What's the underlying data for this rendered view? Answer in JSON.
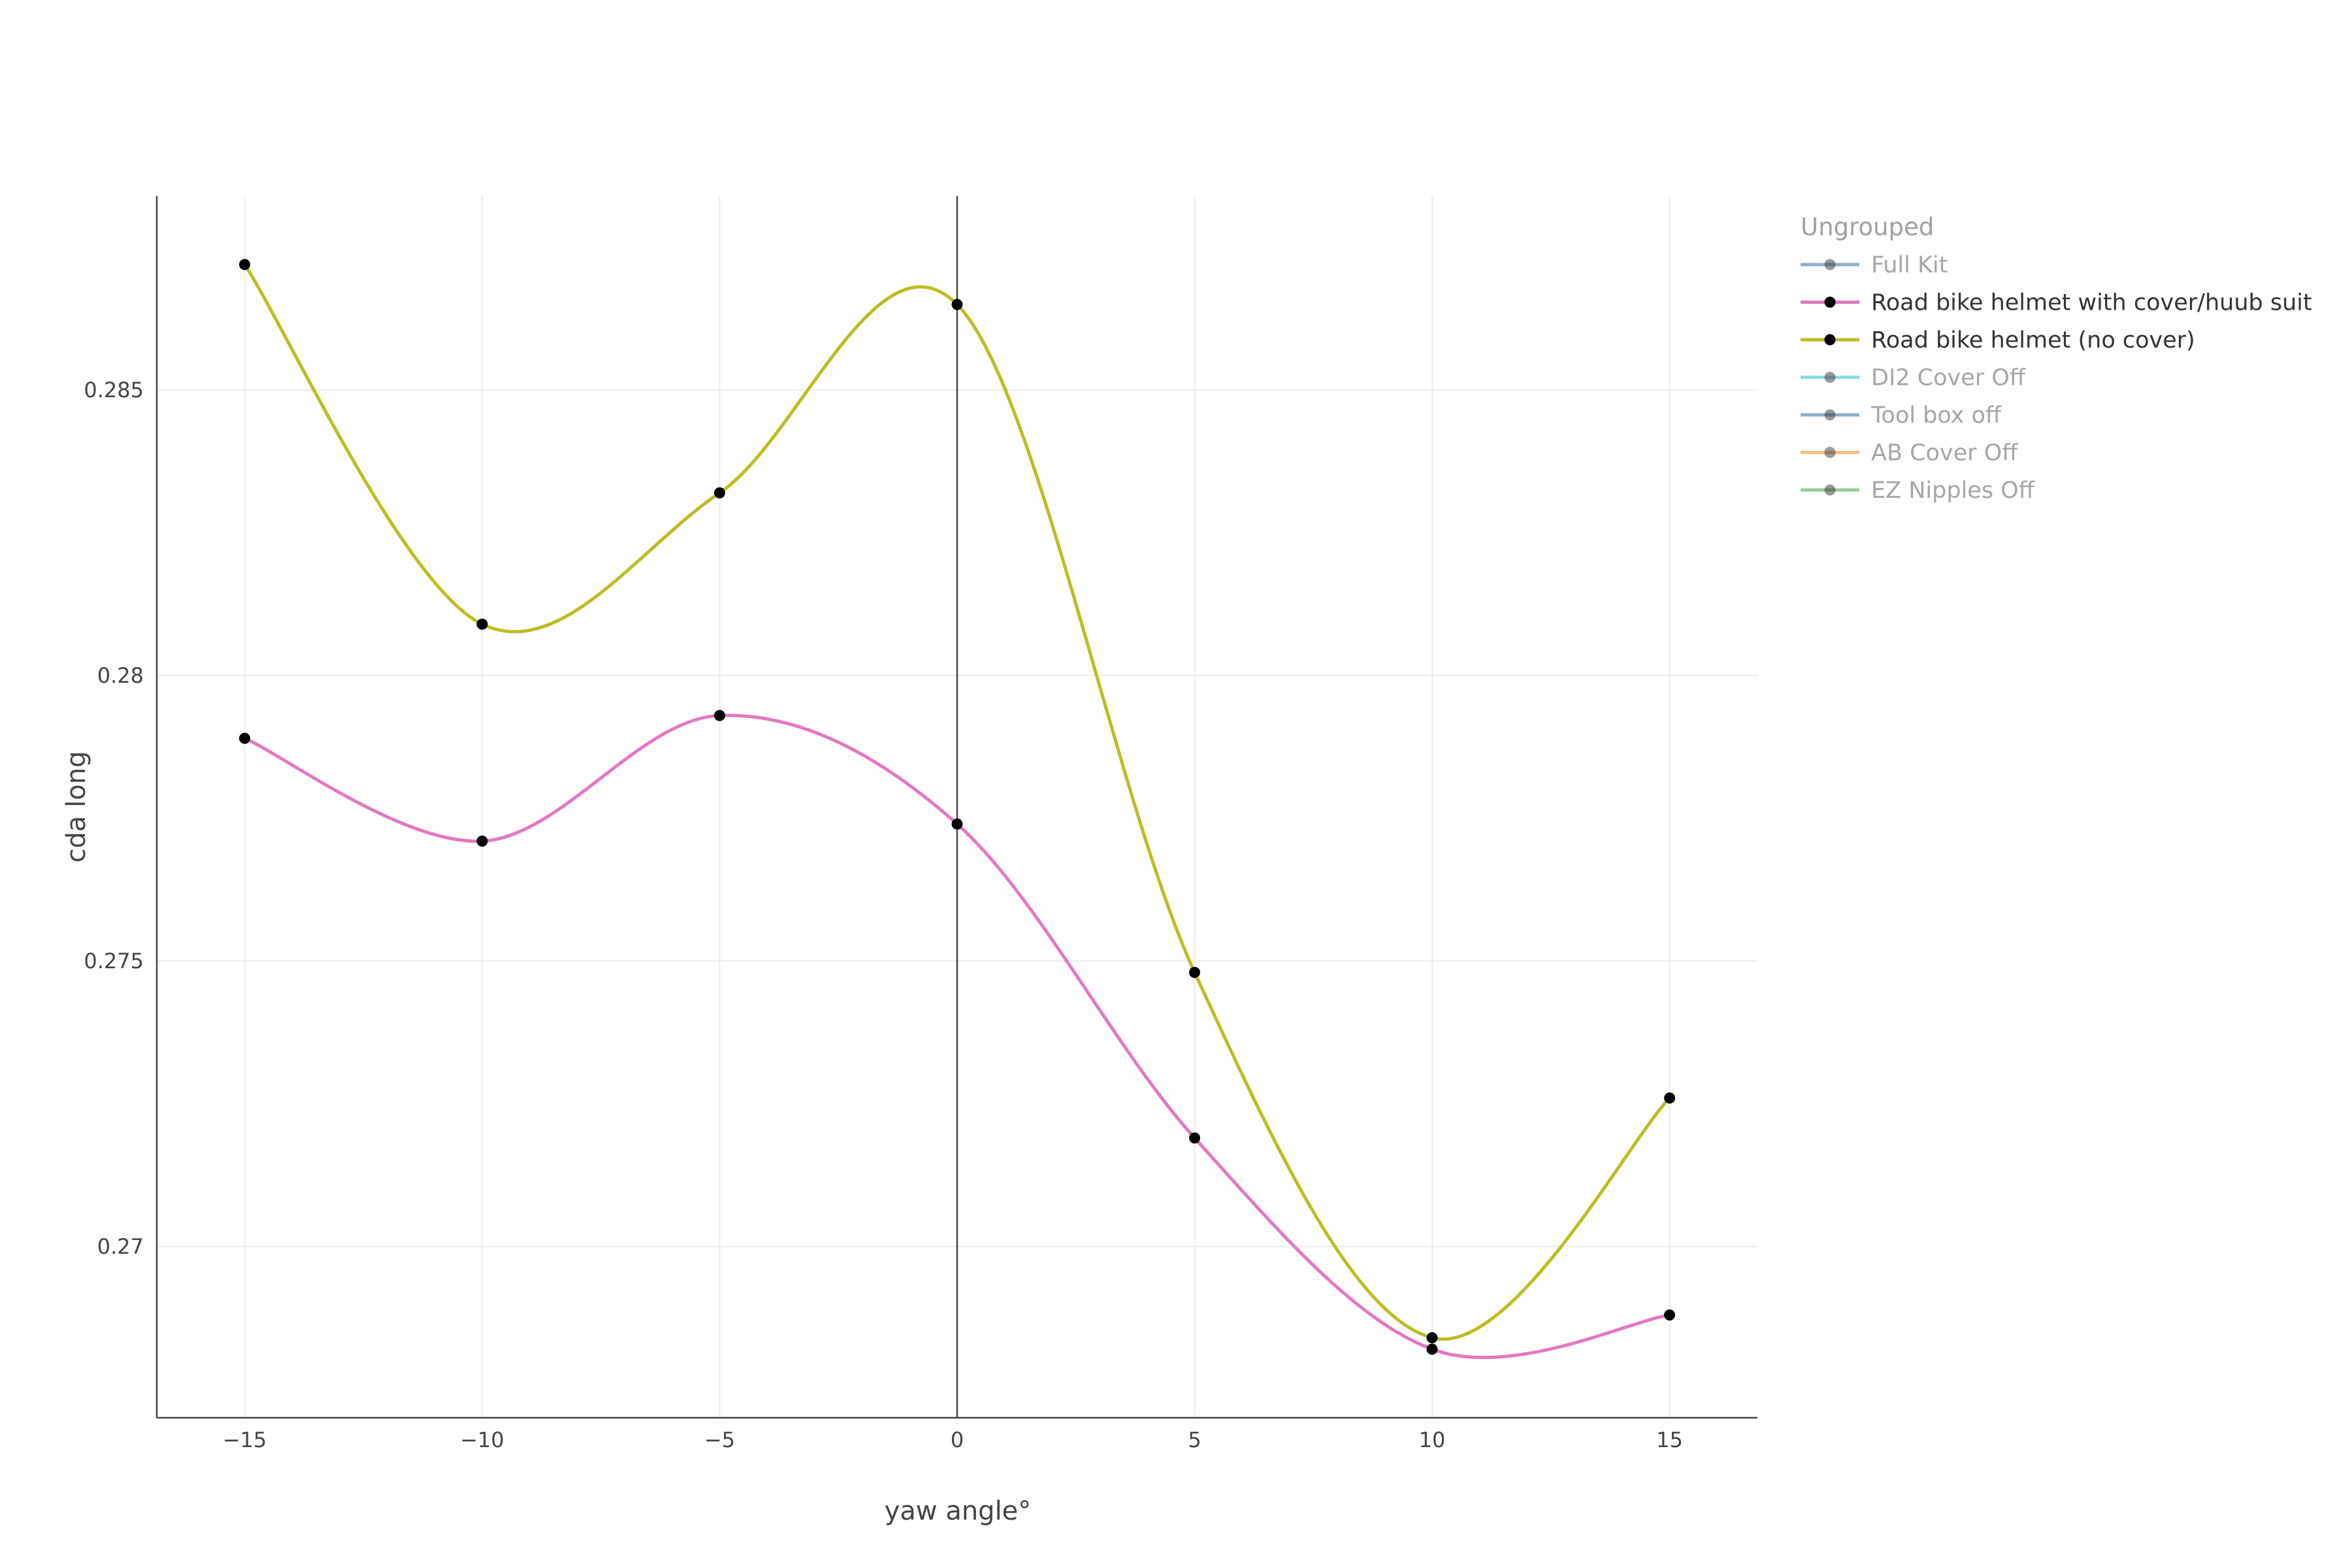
{
  "chart_data": {
    "type": "line",
    "xlabel": "yaw angle°",
    "ylabel": "cda long",
    "xlim": [
      -16.85,
      16.85
    ],
    "ylim": [
      0.267,
      0.2884
    ],
    "x_ticks": [
      -15,
      -10,
      -5,
      0,
      5,
      10,
      15
    ],
    "x_tick_labels": [
      "−15",
      "−10",
      "−5",
      "0",
      "5",
      "10",
      "15"
    ],
    "y_ticks": [
      0.27,
      0.275,
      0.28,
      0.285
    ],
    "y_tick_labels": [
      "0.27",
      "0.275",
      "0.28",
      "0.285"
    ],
    "grid": true,
    "zero_line_x": 0,
    "legend": {
      "title": "Ungrouped",
      "placement": "top-right, outside plot",
      "entries": [
        {
          "name": "Full Kit",
          "color": "#1f5f9f",
          "active": false
        },
        {
          "name": "Road bike helmet with cover/huub suit",
          "color": "#e377c2",
          "active": true
        },
        {
          "name": "Road bike helmet (no cover)",
          "color": "#bcbd22",
          "active": true
        },
        {
          "name": "DI2 Cover Off",
          "color": "#17becf",
          "active": false
        },
        {
          "name": "Tool box off",
          "color": "#1f5f8f",
          "active": false
        },
        {
          "name": "AB Cover Off",
          "color": "#ff7f0e",
          "active": false
        },
        {
          "name": "EZ Nipples Off",
          "color": "#2ca02c",
          "active": false
        }
      ]
    },
    "series": [
      {
        "name": "Road bike helmet with cover/huub suit",
        "color": "#e377c2",
        "x": [
          -15,
          -10,
          -5,
          0,
          5,
          10,
          15
        ],
        "y": [
          0.2789,
          0.2771,
          0.2793,
          0.2774,
          0.2719,
          0.2682,
          0.2688
        ]
      },
      {
        "name": "Road bike helmet (no cover)",
        "color": "#bcbd22",
        "x": [
          -15,
          -10,
          -5,
          0,
          5,
          10,
          15
        ],
        "y": [
          0.2872,
          0.2809,
          0.2832,
          0.2865,
          0.2748,
          0.2684,
          0.2726
        ]
      }
    ],
    "marker_color": "#000000"
  }
}
